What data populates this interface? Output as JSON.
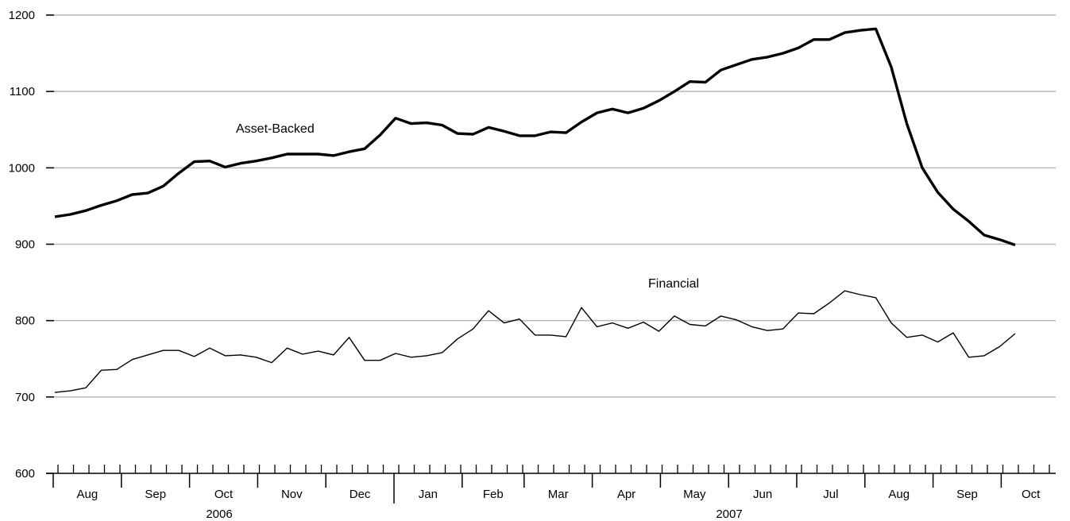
{
  "chart_data": {
    "type": "line",
    "title": "",
    "xlabel": "",
    "ylabel": "",
    "ylim": [
      600,
      1200
    ],
    "yticks": [
      600,
      700,
      800,
      900,
      1000,
      1100,
      1200
    ],
    "grid": "horizontal",
    "month_labels": [
      "Aug",
      "Sep",
      "Oct",
      "Nov",
      "Dec",
      "Jan",
      "Feb",
      "Mar",
      "Apr",
      "May",
      "Jun",
      "Jul",
      "Aug",
      "Sep",
      "Oct"
    ],
    "year_labels": [
      "2006",
      "2007"
    ],
    "series": [
      {
        "name": "Asset-Backed",
        "line_color": "#000000",
        "values": [
          936,
          939,
          944,
          951,
          957,
          965,
          967,
          976,
          993,
          1008,
          1009,
          1001,
          1006,
          1009,
          1013,
          1018,
          1018,
          1018,
          1016,
          1021,
          1025,
          1043,
          1065,
          1058,
          1059,
          1056,
          1045,
          1044,
          1053,
          1048,
          1042,
          1042,
          1047,
          1046,
          1060,
          1072,
          1077,
          1072,
          1078,
          1088,
          1100,
          1113,
          1112,
          1128,
          1135,
          1142,
          1145,
          1150,
          1157,
          1168,
          1168,
          1177,
          1180,
          1182,
          1132,
          1058,
          1000,
          968,
          946,
          930,
          912,
          906,
          899
        ]
      },
      {
        "name": "Financial",
        "line_color": "#000000",
        "values": [
          706,
          708,
          712,
          735,
          736,
          749,
          755,
          761,
          761,
          753,
          764,
          754,
          755,
          752,
          745,
          764,
          756,
          760,
          755,
          778,
          748,
          748,
          757,
          752,
          754,
          758,
          776,
          789,
          813,
          797,
          802,
          781,
          781,
          779,
          817,
          792,
          797,
          790,
          798,
          786,
          806,
          795,
          793,
          806,
          801,
          792,
          787,
          789,
          810,
          809,
          823,
          839,
          834,
          830,
          797,
          778,
          781,
          772,
          784,
          752,
          754,
          766,
          783
        ]
      }
    ]
  }
}
